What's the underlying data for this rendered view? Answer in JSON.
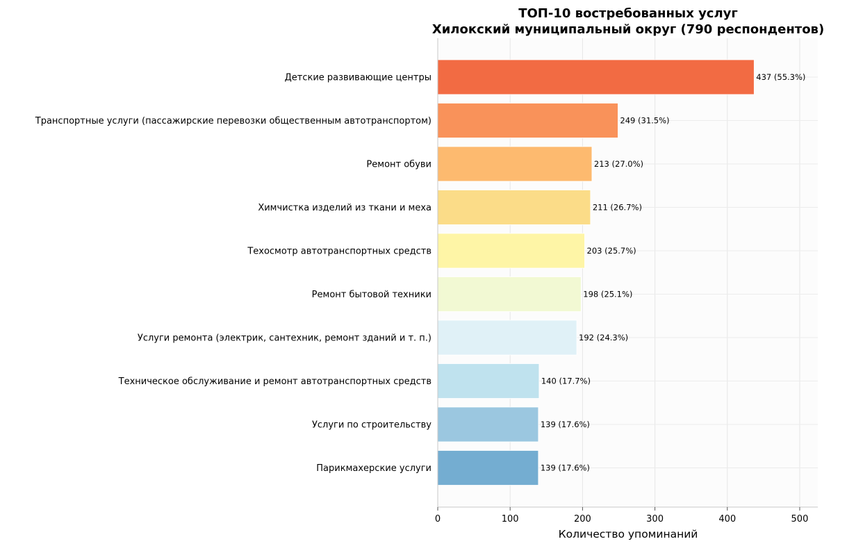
{
  "chart_data": {
    "type": "bar",
    "orientation": "horizontal",
    "title": "ТОП-10 востребованных услуг",
    "subtitle": "Хилокский муниципальный округ (790 респондентов)",
    "xlabel": "Количество упоминаний",
    "ylabel": "",
    "xlim": [
      0,
      525
    ],
    "x_ticks": [
      0,
      100,
      200,
      300,
      400,
      500
    ],
    "grid": true,
    "categories": [
      "Детские развивающие центры",
      "Транспортные услуги (пассажирские перевозки общественным автотранспортом)",
      "Ремонт обуви",
      "Химчистка изделий из ткани и меха",
      "Техосмотр автотранспортных средств",
      "Ремонт бытовой техники",
      "Услуги ремонта (электрик, сантехник, ремонт зданий и т. п.)",
      "Техническое обслуживание и ремонт автотранспортных средств",
      "Услуги по строительству",
      "Парикмахерские услуги"
    ],
    "values": [
      437,
      249,
      213,
      211,
      203,
      198,
      192,
      140,
      139,
      139
    ],
    "value_labels": [
      "437 (55.3%)",
      "249 (31.5%)",
      "213 (27.0%)",
      "211 (26.7%)",
      "203 (25.7%)",
      "198 (25.1%)",
      "192 (24.3%)",
      "140 (17.7%)",
      "139 (17.6%)",
      "139 (17.6%)"
    ],
    "colors": [
      "#f26b43",
      "#f9925a",
      "#fdba6f",
      "#fbdc88",
      "#fef5a6",
      "#f2f9d3",
      "#e0f1f7",
      "#bfe2ee",
      "#9bc7e0",
      "#74add1"
    ]
  }
}
